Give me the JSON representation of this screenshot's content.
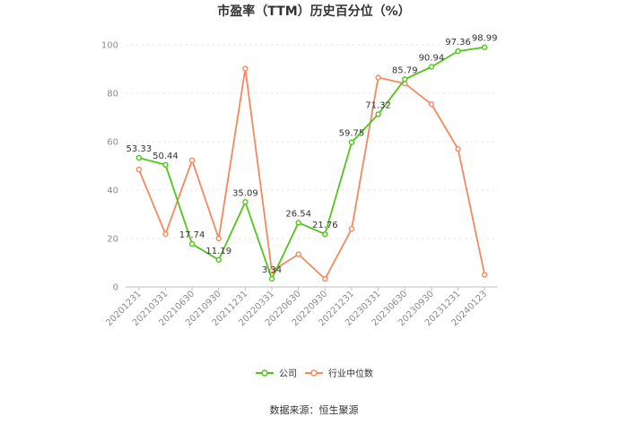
{
  "chart_data": {
    "type": "line",
    "title": "市盈率（TTM）历史百分位（%）",
    "x": [
      "20201231",
      "20210331",
      "20210630",
      "20210930",
      "20211231",
      "20220331",
      "20220630",
      "20220930",
      "20221231",
      "20230331",
      "20230630",
      "20230930",
      "20231231",
      "20240123"
    ],
    "series": [
      {
        "name": "公司",
        "color": "#52c41a",
        "values": [
          53.33,
          50.44,
          17.74,
          11.19,
          35.09,
          3.34,
          26.54,
          21.76,
          59.75,
          71.32,
          85.79,
          90.94,
          97.36,
          98.99
        ],
        "labels": [
          "53.33",
          "50.44",
          "17.74",
          "11.19",
          "35.09",
          "3.34",
          "26.54",
          "21.76",
          "59.75",
          "71.32",
          "85.79",
          "90.94",
          "97.36",
          "98.99"
        ]
      },
      {
        "name": "行业中位数",
        "color": "#f4895f",
        "values": [
          48.5,
          21.8,
          52.3,
          20.0,
          90.2,
          6.5,
          13.5,
          3.3,
          24.0,
          86.5,
          84.0,
          75.5,
          57.0,
          5.0
        ]
      }
    ],
    "ylim": [
      0,
      100
    ],
    "yticks": [
      0,
      20,
      40,
      60,
      80,
      100
    ],
    "grid": true,
    "legend": "bottom-center"
  },
  "source_text": "数据来源：恒生聚源"
}
